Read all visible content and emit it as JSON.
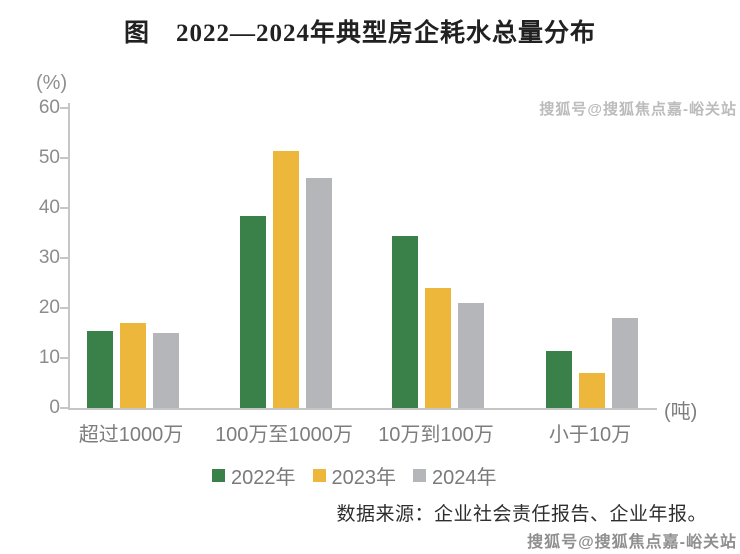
{
  "title": "图　2022—2024年典型房企耗水总量分布",
  "source_note": "数据来源：企业社会责任报告、企业年报。",
  "watermarks": {
    "top_right": "搜狐号@搜狐焦点嘉-峪关站",
    "bottom_right": "搜狐号@搜狐焦点嘉-峪关站"
  },
  "colors": {
    "axis": "#c6c6c6",
    "tick_text": "#8c8c8c",
    "category_text": "#7d7d7d",
    "legend_text": "#7a7a7a",
    "title_text": "#212121",
    "source_text": "#2e2e2e",
    "watermark_text": "#8f8f8f",
    "series_2022": "#3a8049",
    "series_2023": "#ecb73a",
    "series_2024": "#b5b6b9"
  },
  "chart_data": {
    "type": "bar",
    "title": "图　2022—2024年典型房企耗水总量分布",
    "y_axis_unit": "(%)",
    "x_axis_unit": "(吨)",
    "xlabel": "",
    "ylabel": "",
    "ylim": [
      0,
      60
    ],
    "yticks": [
      0,
      10,
      20,
      30,
      40,
      50,
      60
    ],
    "grid": false,
    "legend_position": "bottom",
    "categories": [
      "超过1000万",
      "100万至1000万",
      "10万到100万",
      "小于10万"
    ],
    "series": [
      {
        "name": "2022年",
        "color": "#3a8049",
        "values": [
          15.5,
          38.5,
          34.5,
          11.5
        ]
      },
      {
        "name": "2023年",
        "color": "#ecb73a",
        "values": [
          17,
          51.5,
          24,
          7
        ]
      },
      {
        "name": "2024年",
        "color": "#b5b6b9",
        "values": [
          15,
          46,
          21,
          18
        ]
      }
    ]
  }
}
